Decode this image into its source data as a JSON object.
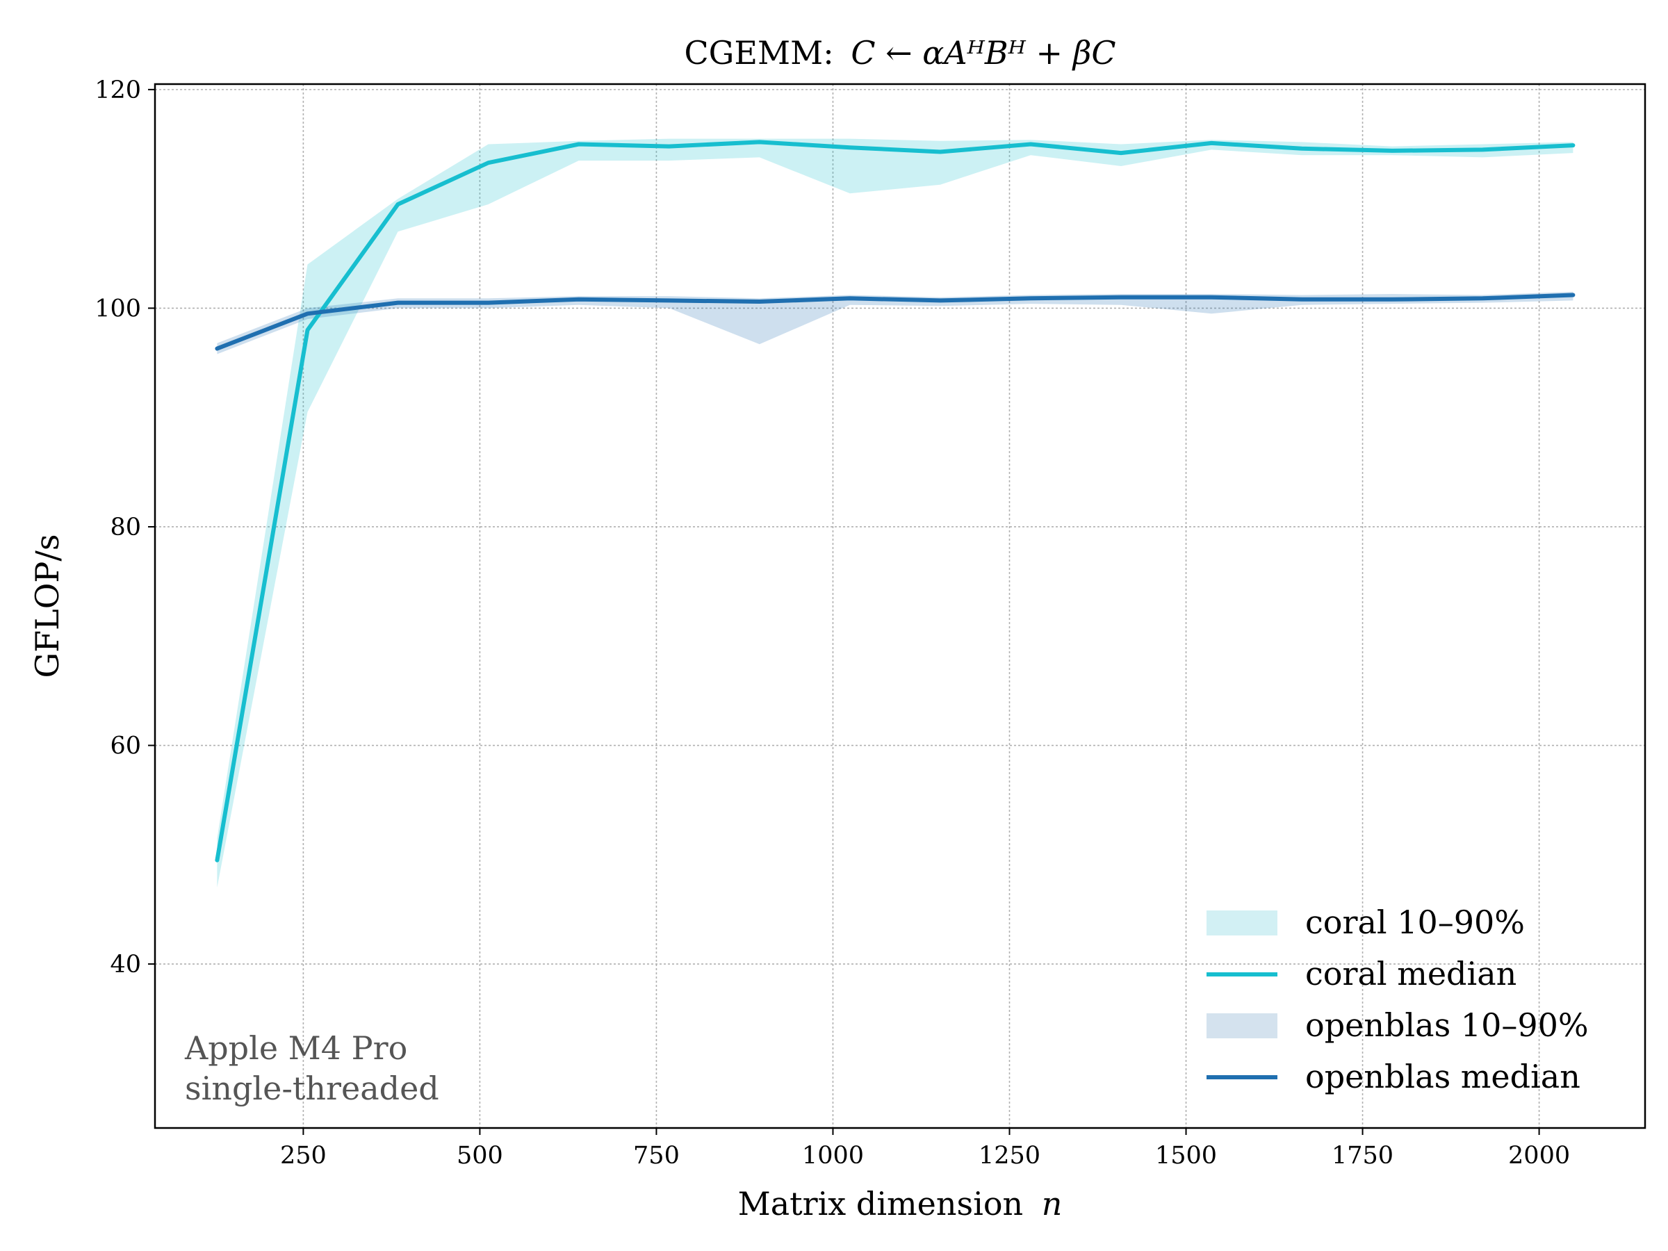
{
  "chart_data": {
    "type": "line",
    "title": "CGEMM: C ← αAᴴBᴴ + βC",
    "title_prefix": "CGEMM:",
    "title_math": "C ← αAᴴBᴴ + βC",
    "xlabel": "Matrix dimension",
    "xlabel_var": "n",
    "ylabel": "GFLOP/s",
    "xlim": [
      40,
      2150
    ],
    "ylim": [
      25,
      120.5
    ],
    "xticks": [
      250,
      500,
      750,
      1000,
      1250,
      1500,
      1750,
      2000
    ],
    "xtick_labels": [
      "250",
      "500",
      "750",
      "1000",
      "1250",
      "1500",
      "1750",
      "2000"
    ],
    "yticks": [
      40,
      60,
      80,
      100,
      120
    ],
    "ytick_labels": [
      "40",
      "60",
      "80",
      "100",
      "120"
    ],
    "grid": true,
    "legend_position": "lower-right",
    "x": [
      128,
      256,
      384,
      512,
      640,
      768,
      896,
      1024,
      1152,
      1280,
      1408,
      1536,
      1664,
      1792,
      1920,
      2048
    ],
    "series": [
      {
        "name": "coral median",
        "band_name": "coral 10–90%",
        "color": "#17becf",
        "band_color": "#d2f0f4",
        "median": [
          49.5,
          98.0,
          109.5,
          113.3,
          115.0,
          114.8,
          115.2,
          114.7,
          114.3,
          115.0,
          114.2,
          115.1,
          114.6,
          114.4,
          114.5,
          114.9
        ],
        "p10": [
          47.0,
          90.5,
          107.0,
          109.5,
          113.5,
          113.5,
          113.8,
          110.5,
          111.3,
          114.0,
          113.0,
          114.5,
          114.0,
          114.0,
          113.8,
          114.2
        ],
        "p90": [
          51.5,
          104.0,
          110.0,
          115.0,
          115.3,
          115.5,
          115.5,
          115.5,
          115.3,
          115.4,
          115.0,
          115.4,
          115.2,
          114.8,
          115.0,
          115.2
        ]
      },
      {
        "name": "openblas median",
        "band_name": "openblas 10–90%",
        "color": "#1f6fb0",
        "band_color": "#d4e2ee",
        "median": [
          96.3,
          99.5,
          100.5,
          100.5,
          100.8,
          100.7,
          100.6,
          100.9,
          100.7,
          100.9,
          101.0,
          101.0,
          100.8,
          100.8,
          100.9,
          101.2
        ],
        "p10": [
          95.8,
          99.0,
          100.0,
          100.0,
          100.3,
          100.0,
          96.7,
          100.3,
          100.2,
          100.4,
          100.3,
          99.5,
          100.3,
          100.4,
          100.5,
          100.7
        ],
        "p90": [
          96.8,
          100.0,
          100.9,
          100.9,
          101.1,
          101.1,
          100.9,
          101.2,
          101.0,
          101.2,
          101.3,
          101.3,
          101.2,
          101.3,
          101.2,
          101.5
        ]
      }
    ],
    "annotation": [
      "Apple M4 Pro",
      "single-threaded"
    ]
  }
}
